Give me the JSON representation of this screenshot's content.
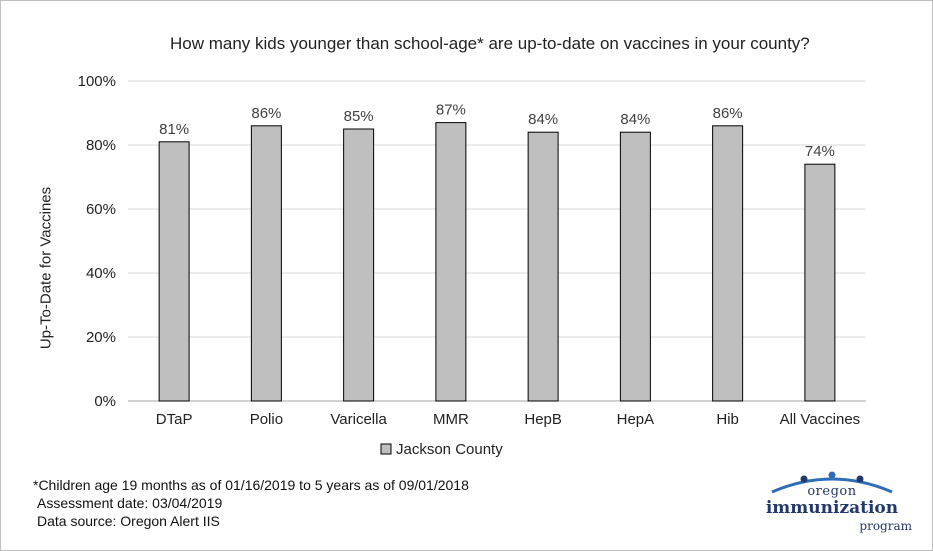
{
  "chart_data": {
    "type": "bar",
    "title": "How many kids younger than school-age* are up-to-date on vaccines in your county?",
    "ylabel": "Up-To-Date for Vaccines",
    "xlabel": "",
    "ylim": [
      0,
      100
    ],
    "yticks": [
      0,
      20,
      40,
      60,
      80,
      100
    ],
    "ytick_labels": [
      "0%",
      "20%",
      "40%",
      "60%",
      "80%",
      "100%"
    ],
    "categories": [
      "DTaP",
      "Polio",
      "Varicella",
      "MMR",
      "HepB",
      "HepA",
      "Hib",
      "All Vaccines"
    ],
    "series": [
      {
        "name": "Jackson County",
        "values": [
          81,
          86,
          85,
          87,
          84,
          84,
          86,
          74
        ],
        "labels": [
          "81%",
          "86%",
          "85%",
          "87%",
          "84%",
          "84%",
          "86%",
          "74%"
        ],
        "color": "#bfbfbf"
      }
    ],
    "grid": true,
    "legend": "bottom"
  },
  "footnotes": {
    "line1": "*Children age 19 months as of 01/16/2019 to 5 years as of 09/01/2018",
    "line2": "Assessment date: 03/04/2019",
    "line3": "Data source: Oregon Alert IIS"
  },
  "logo": {
    "top": "oregon",
    "middle": "immunization",
    "bottom": "program",
    "color": "#23386b",
    "accent": "#2f6db5"
  }
}
